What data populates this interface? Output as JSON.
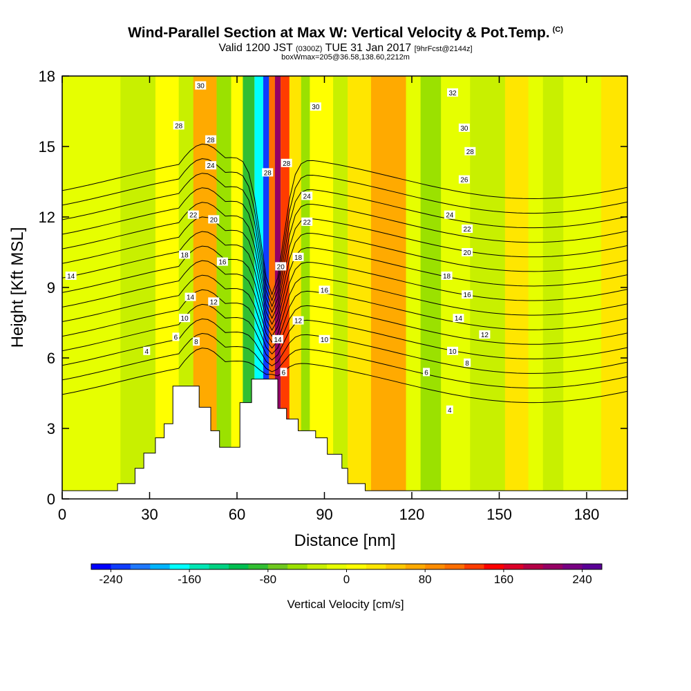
{
  "title_main": "Wind-Parallel Section at Max W: Vertical Velocity & Pot.Temp.",
  "title_mark": "(C)",
  "subtitle_a": "Valid 1200 JST",
  "subtitle_b": "(0300Z)",
  "subtitle_c": "TUE 31 Jan 2017",
  "subtitle_d": "[9hrFcst@2144z]",
  "subtitle2": "boxWmax=205@36.58,138.60,2212m",
  "chart_data": {
    "type": "heatmap",
    "xlabel": "Distance [nm]",
    "ylabel": "Height [Kft MSL]",
    "xlim": [
      0,
      194
    ],
    "ylim": [
      0,
      18
    ],
    "x_ticks": [
      0,
      30,
      60,
      90,
      120,
      150,
      180
    ],
    "y_ticks": [
      0,
      3,
      6,
      9,
      12,
      15,
      18
    ],
    "colorbar": {
      "label": "Vertical Velocity [cm/s]",
      "tick_values": [
        -240,
        -160,
        -80,
        0,
        80,
        160,
        240
      ],
      "tick_labels": [
        "-240",
        "-160",
        "-80",
        "0",
        "80",
        "160",
        "240"
      ],
      "min": -260,
      "step": 20,
      "colors": [
        "#0000ff",
        "#0f3cff",
        "#1e78ff",
        "#00b4ff",
        "#00ffff",
        "#00e6b4",
        "#00d282",
        "#00be50",
        "#32be32",
        "#6ec81e",
        "#9be100",
        "#c8f000",
        "#e6ff00",
        "#ffff00",
        "#ffe600",
        "#ffc800",
        "#ffaa00",
        "#ff8c00",
        "#ff6e00",
        "#ff3c00",
        "#ff0000",
        "#dc0028",
        "#b40046",
        "#960064",
        "#780082",
        "#5a0096"
      ]
    },
    "w_bands": [
      {
        "x0": 0,
        "x1": 194,
        "w": -10
      },
      {
        "x0": 20,
        "x1": 50,
        "w": -30
      },
      {
        "x0": 32,
        "x1": 40,
        "w": 10
      },
      {
        "x0": 45,
        "x1": 53,
        "w": 70
      },
      {
        "x0": 53,
        "x1": 58,
        "w": -50
      },
      {
        "x0": 58,
        "x1": 62,
        "w": 10
      },
      {
        "x0": 62,
        "x1": 66,
        "w": -90
      },
      {
        "x0": 66,
        "x1": 69,
        "w": -170
      },
      {
        "x0": 69,
        "x1": 71,
        "w": -235
      },
      {
        "x0": 71,
        "x1": 73,
        "w": 110
      },
      {
        "x0": 73,
        "x1": 75,
        "w": 205
      },
      {
        "x0": 75,
        "x1": 78,
        "w": 130
      },
      {
        "x0": 78,
        "x1": 82,
        "w": 20
      },
      {
        "x0": 82,
        "x1": 85,
        "w": -50
      },
      {
        "x0": 85,
        "x1": 93,
        "w": 10
      },
      {
        "x0": 93,
        "x1": 98,
        "w": -30
      },
      {
        "x0": 98,
        "x1": 118,
        "w": 25
      },
      {
        "x0": 106,
        "x1": 118,
        "w": 60
      },
      {
        "x0": 123,
        "x1": 130,
        "w": -50
      },
      {
        "x0": 140,
        "x1": 152,
        "w": -30
      },
      {
        "x0": 152,
        "x1": 160,
        "w": 30
      },
      {
        "x0": 165,
        "x1": 172,
        "w": -40
      },
      {
        "x0": 185,
        "x1": 194,
        "w": 20
      }
    ],
    "terrain_profile": [
      {
        "x": 0,
        "z": 0.35
      },
      {
        "x": 19,
        "z": 0.35
      },
      {
        "x": 19,
        "z": 0.65
      },
      {
        "x": 25,
        "z": 0.65
      },
      {
        "x": 25,
        "z": 1.3
      },
      {
        "x": 28,
        "z": 1.3
      },
      {
        "x": 28,
        "z": 1.95
      },
      {
        "x": 32,
        "z": 1.95
      },
      {
        "x": 32,
        "z": 2.6
      },
      {
        "x": 35,
        "z": 2.6
      },
      {
        "x": 35,
        "z": 3.2
      },
      {
        "x": 38,
        "z": 3.2
      },
      {
        "x": 38,
        "z": 4.8
      },
      {
        "x": 47,
        "z": 4.8
      },
      {
        "x": 47,
        "z": 3.9
      },
      {
        "x": 51,
        "z": 3.9
      },
      {
        "x": 51,
        "z": 2.9
      },
      {
        "x": 54,
        "z": 2.9
      },
      {
        "x": 54,
        "z": 2.2
      },
      {
        "x": 61,
        "z": 2.2
      },
      {
        "x": 61,
        "z": 4.1
      },
      {
        "x": 65,
        "z": 4.1
      },
      {
        "x": 65,
        "z": 5.1
      },
      {
        "x": 74,
        "z": 5.1
      },
      {
        "x": 74,
        "z": 3.85
      },
      {
        "x": 77,
        "z": 3.85
      },
      {
        "x": 77,
        "z": 3.4
      },
      {
        "x": 81,
        "z": 3.4
      },
      {
        "x": 81,
        "z": 2.9
      },
      {
        "x": 87,
        "z": 2.9
      },
      {
        "x": 87,
        "z": 2.6
      },
      {
        "x": 91,
        "z": 2.6
      },
      {
        "x": 91,
        "z": 1.9
      },
      {
        "x": 96,
        "z": 1.9
      },
      {
        "x": 96,
        "z": 1.3
      },
      {
        "x": 98,
        "z": 1.3
      },
      {
        "x": 98,
        "z": 0.65
      },
      {
        "x": 104,
        "z": 0.65
      },
      {
        "x": 104,
        "z": 0.35
      },
      {
        "x": 194,
        "z": 0.35
      }
    ],
    "theta_contours": {
      "levels_C": [
        4,
        6,
        8,
        10,
        12,
        14,
        16,
        18,
        20,
        22,
        24,
        26,
        28,
        30,
        32
      ],
      "base_height_kft": 5.0,
      "spacing_kft": 0.62
    },
    "contour_labels": [
      {
        "t": "30",
        "x": 47.5,
        "z": 17.6
      },
      {
        "t": "30",
        "x": 87,
        "z": 16.7
      },
      {
        "t": "32",
        "x": 134,
        "z": 17.3
      },
      {
        "t": "30",
        "x": 138,
        "z": 15.8
      },
      {
        "t": "28",
        "x": 40,
        "z": 15.9
      },
      {
        "t": "28",
        "x": 51,
        "z": 15.3
      },
      {
        "t": "28",
        "x": 140,
        "z": 14.8
      },
      {
        "t": "28",
        "x": 70.5,
        "z": 13.9
      },
      {
        "t": "28",
        "x": 77,
        "z": 14.3
      },
      {
        "t": "26",
        "x": 138,
        "z": 13.6
      },
      {
        "t": "24",
        "x": 51,
        "z": 14.2
      },
      {
        "t": "24",
        "x": 84,
        "z": 12.9
      },
      {
        "t": "24",
        "x": 133,
        "z": 12.1
      },
      {
        "t": "22",
        "x": 45,
        "z": 12.1
      },
      {
        "t": "22",
        "x": 84,
        "z": 11.8
      },
      {
        "t": "22",
        "x": 139,
        "z": 11.5
      },
      {
        "t": "20",
        "x": 52,
        "z": 11.9
      },
      {
        "t": "20",
        "x": 75,
        "z": 9.9
      },
      {
        "t": "20",
        "x": 139,
        "z": 10.5
      },
      {
        "t": "18",
        "x": 42,
        "z": 10.4
      },
      {
        "t": "18",
        "x": 81,
        "z": 10.3
      },
      {
        "t": "18",
        "x": 132,
        "z": 9.5
      },
      {
        "t": "16",
        "x": 55,
        "z": 10.1
      },
      {
        "t": "16",
        "x": 90,
        "z": 8.9
      },
      {
        "t": "16",
        "x": 139,
        "z": 8.7
      },
      {
        "t": "14",
        "x": 3,
        "z": 9.5
      },
      {
        "t": "14",
        "x": 44,
        "z": 8.6
      },
      {
        "t": "14",
        "x": 74,
        "z": 6.8
      },
      {
        "t": "14",
        "x": 136,
        "z": 7.7
      },
      {
        "t": "12",
        "x": 52,
        "z": 8.4
      },
      {
        "t": "12",
        "x": 81,
        "z": 7.6
      },
      {
        "t": "12",
        "x": 145,
        "z": 7.0
      },
      {
        "t": "10",
        "x": 42,
        "z": 7.7
      },
      {
        "t": "10",
        "x": 90,
        "z": 6.8
      },
      {
        "t": "10",
        "x": 134,
        "z": 6.3
      },
      {
        "t": "8",
        "x": 46,
        "z": 6.7
      },
      {
        "t": "8",
        "x": 139,
        "z": 5.8
      },
      {
        "t": "6",
        "x": 39,
        "z": 6.9
      },
      {
        "t": "6",
        "x": 125,
        "z": 5.4
      },
      {
        "t": "6",
        "x": 76,
        "z": 5.4
      },
      {
        "t": "4",
        "x": 29,
        "z": 6.3
      },
      {
        "t": "4",
        "x": 133,
        "z": 3.8
      }
    ]
  }
}
